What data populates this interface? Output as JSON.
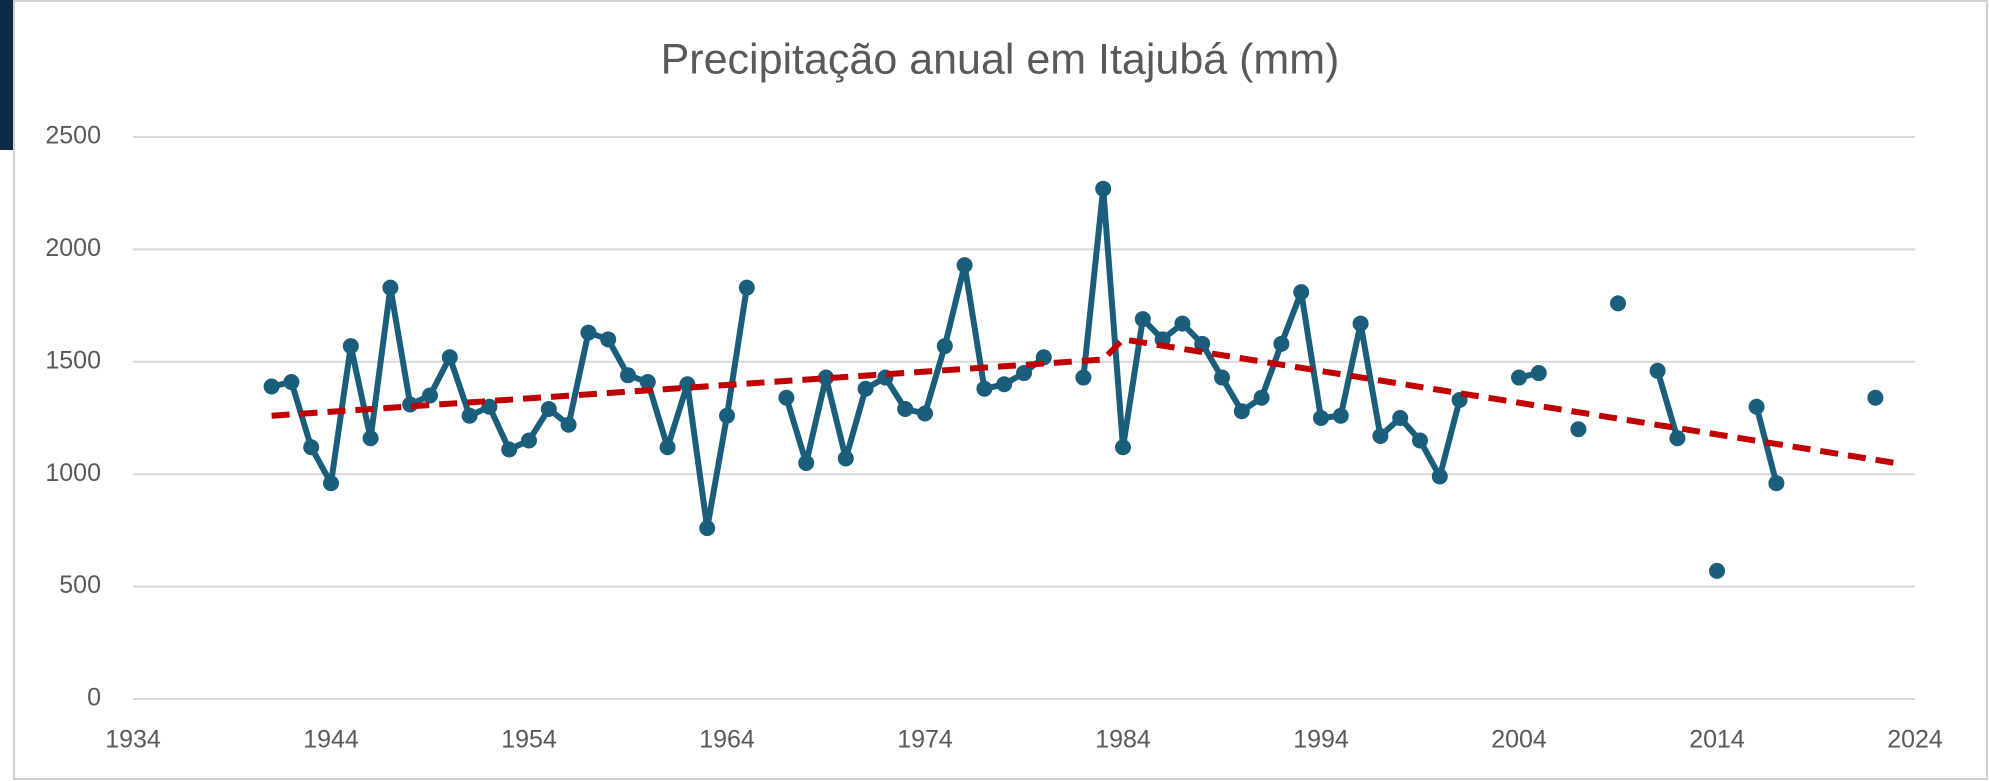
{
  "chart_data": {
    "type": "line",
    "title": "Precipitação anual em Itajubá (mm)",
    "x": [
      1941,
      1942,
      1943,
      1944,
      1945,
      1946,
      1947,
      1948,
      1949,
      1950,
      1951,
      1952,
      1953,
      1954,
      1955,
      1956,
      1957,
      1958,
      1959,
      1960,
      1961,
      1962,
      1963,
      1964,
      1965,
      1966,
      1967,
      1968,
      1969,
      1970,
      1971,
      1972,
      1973,
      1974,
      1975,
      1976,
      1977,
      1978,
      1979,
      1980,
      1981,
      1982,
      1983,
      1984,
      1985,
      1986,
      1987,
      1988,
      1989,
      1990,
      1991,
      1992,
      1993,
      1994,
      1995,
      1996,
      1997,
      1998,
      1999,
      2000,
      2001,
      2002,
      2003,
      2004,
      2005,
      2006,
      2007,
      2008,
      2009,
      2010,
      2011,
      2012,
      2013,
      2014,
      2015,
      2016,
      2017,
      2018,
      2019,
      2020,
      2021,
      2022
    ],
    "series": [
      {
        "color": "#1b5e7b",
        "values": [
          1390,
          1410,
          1120,
          960,
          1570,
          1160,
          1830,
          1310,
          1350,
          1520,
          1260,
          1300,
          1110,
          1150,
          1290,
          1220,
          1630,
          1600,
          1440,
          1410,
          1120,
          1400,
          760,
          1260,
          1830,
          null,
          1340,
          1050,
          1430,
          1070,
          1380,
          1430,
          1290,
          1270,
          1570,
          1930,
          1380,
          1400,
          1450,
          1520,
          null,
          1430,
          2270,
          1120,
          1690,
          1600,
          1670,
          1580,
          1430,
          1280,
          1340,
          1580,
          1810,
          1250,
          1260,
          1670,
          1170,
          1250,
          1150,
          990,
          1330,
          null,
          null,
          1430,
          1450,
          null,
          1200,
          null,
          1760,
          null,
          1460,
          1160,
          null,
          570,
          null,
          1300,
          960,
          null,
          null,
          null,
          null,
          1340
        ]
      }
    ],
    "trend": {
      "color": "#c00000",
      "dashed": true,
      "x": [
        1941,
        1983,
        1984,
        2023
      ],
      "values": [
        1260,
        1510,
        1600,
        1050
      ]
    },
    "xlim": [
      1934,
      2024
    ],
    "xticks": [
      1934,
      1944,
      1954,
      1964,
      1974,
      1984,
      1994,
      2004,
      2014,
      2024
    ],
    "ylim": [
      0,
      2500
    ],
    "yticks": [
      0,
      500,
      1000,
      1500,
      2000,
      2500
    ],
    "grid": true
  }
}
